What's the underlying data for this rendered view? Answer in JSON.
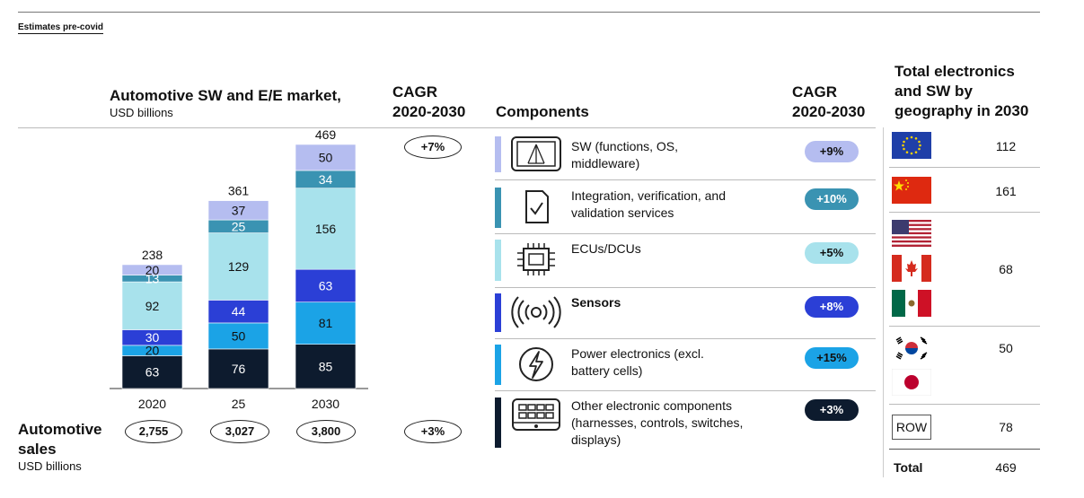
{
  "note_label": "Estimates pre-covid",
  "market": {
    "title": "Automotive SW and E/E market,",
    "unit": "USD billions"
  },
  "cagr_header": {
    "line1": "CAGR",
    "line2": "2020-2030"
  },
  "cagr_market": "+7%",
  "cagr_sales": "+3%",
  "components_header": "Components",
  "geo_header": {
    "line1": "Total electronics",
    "line2": "and SW by",
    "line3": "geography in 2030"
  },
  "sales": {
    "label1": "Automotive",
    "label2": "sales",
    "unit": "USD billions",
    "values": [
      "2,755",
      "3,027",
      "3,800"
    ]
  },
  "chart_data": {
    "type": "bar",
    "stacked": true,
    "categories": [
      "2020",
      "25",
      "2030"
    ],
    "totals": [
      238,
      361,
      469
    ],
    "series": [
      {
        "name": "Other electronic components",
        "color": "#0d1b2e",
        "values": [
          63,
          76,
          85
        ]
      },
      {
        "name": "Power electronics",
        "color": "#1ba3e6",
        "values": [
          20,
          50,
          81
        ]
      },
      {
        "name": "Sensors",
        "color": "#2b3fd6",
        "values": [
          30,
          44,
          63
        ]
      },
      {
        "name": "ECUs/DCUs",
        "color": "#a8e2ec",
        "values": [
          92,
          129,
          156
        ]
      },
      {
        "name": "Integration, verification, and validation services",
        "color": "#3a93b2",
        "values": [
          13,
          25,
          34
        ]
      },
      {
        "name": "SW",
        "color": "#b5bdf0",
        "values": [
          20,
          37,
          50
        ]
      }
    ],
    "label_colors": [
      "#ffffff",
      "#111111",
      "#ffffff",
      "#111111",
      "#ffffff",
      "#111111"
    ]
  },
  "components": [
    {
      "label": "SW (functions, OS, middleware)",
      "cagr": "+9%",
      "color": "#b5bdf0",
      "text_color": "#111111",
      "icon": "software-icon",
      "bold": false
    },
    {
      "label": "Integration, verification, and validation services",
      "cagr": "+10%",
      "color": "#3a93b2",
      "text_color": "#ffffff",
      "icon": "document-check-icon",
      "bold": false
    },
    {
      "label": "ECUs/DCUs",
      "cagr": "+5%",
      "color": "#a8e2ec",
      "text_color": "#111111",
      "icon": "chip-icon",
      "bold": false
    },
    {
      "label": "Sensors",
      "cagr": "+8%",
      "color": "#2b3fd6",
      "text_color": "#ffffff",
      "icon": "sensor-icon",
      "bold": true
    },
    {
      "label": "Power electronics (excl. battery cells)",
      "cagr": "+15%",
      "color": "#1ba3e6",
      "text_color": "#111111",
      "icon": "power-icon",
      "bold": false
    },
    {
      "label": "Other electronic components (harnesses, controls, switches, displays)",
      "cagr": "+3%",
      "color": "#0d1b2e",
      "text_color": "#ffffff",
      "icon": "control-panel-icon",
      "bold": false
    }
  ],
  "geography": {
    "eu": "112",
    "china": "161",
    "north_america": "68",
    "asia": "50",
    "row_label": "ROW",
    "row": "78",
    "total_label": "Total",
    "total": "469"
  }
}
